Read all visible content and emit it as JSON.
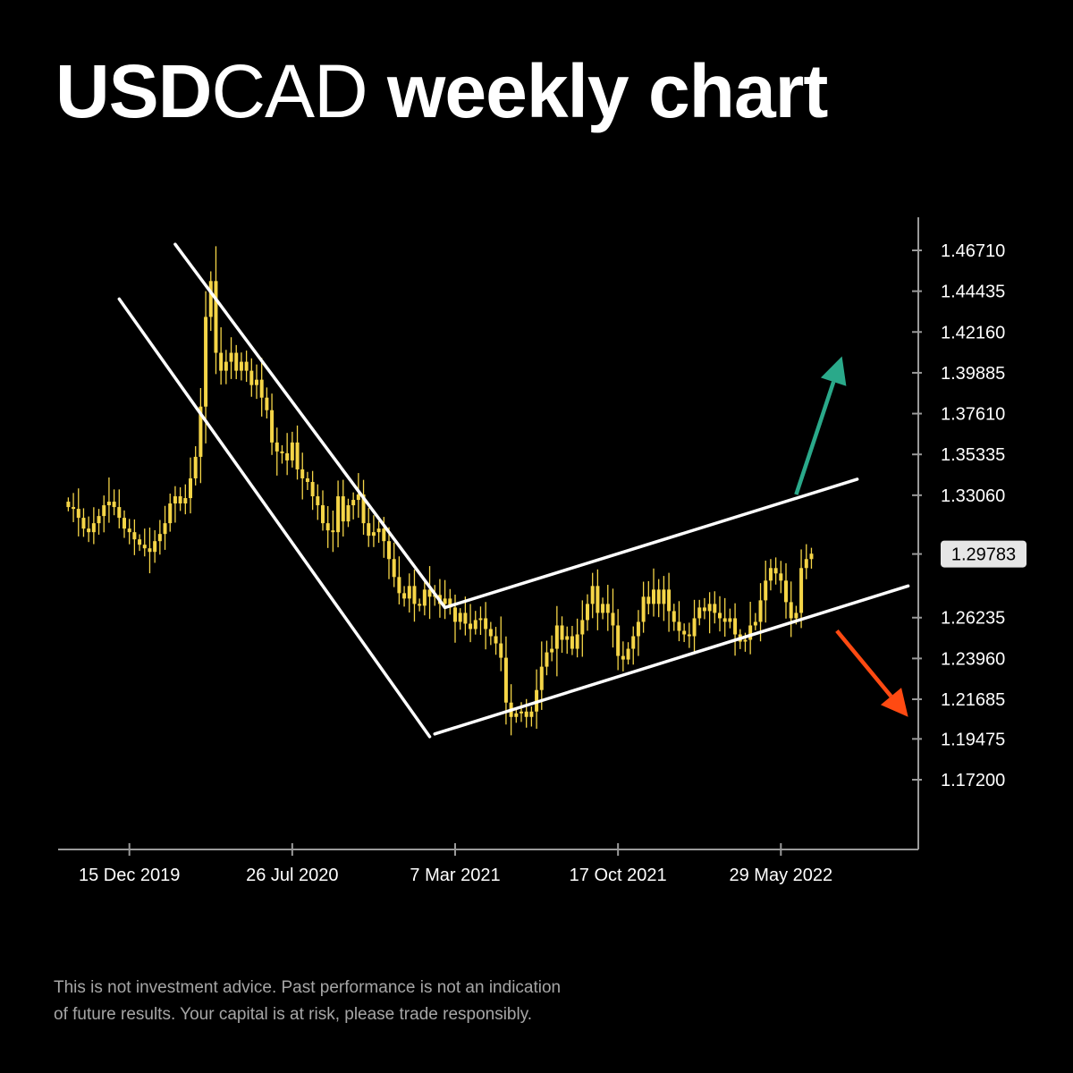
{
  "title": {
    "symbol_bold": "USD",
    "symbol_light": "CAD",
    "rest": " weekly chart"
  },
  "disclaimer": {
    "line1": "This is not investment advice. Past performance is not an indication",
    "line2": "of future results. Your capital is at risk, please trade responsibly."
  },
  "colors": {
    "background": "#000000",
    "candle": "#f5d547",
    "trendline": "#ffffff",
    "axis": "#9a9a9a",
    "up_arrow": "#2aa98a",
    "down_arrow": "#ff4a12",
    "price_tag_bg": "#e6e6e6",
    "price_tag_text": "#000000"
  },
  "chart_data": {
    "type": "candlestick",
    "title": "USDCAD weekly chart",
    "x_tick_labels": [
      "15 Dec 2019",
      "26 Jul 2020",
      "7 Mar 2021",
      "17 Oct 2021",
      "29 May 2022"
    ],
    "y_tick_labels": [
      "1.46710",
      "1.44435",
      "1.42160",
      "1.39885",
      "1.37610",
      "1.35335",
      "1.33060",
      "1.26235",
      "1.23960",
      "1.21685",
      "1.19475",
      "1.17200"
    ],
    "ylim": [
      1.135,
      1.485
    ],
    "xlim": [
      "2019-09-08",
      "2022-12-04"
    ],
    "last_price_label": "1.29783",
    "last_price": 1.29783,
    "close_series": {
      "start_date": "2019-09-22",
      "interval": "weekly",
      "values": [
        1.324,
        1.323,
        1.318,
        1.312,
        1.31,
        1.315,
        1.319,
        1.325,
        1.327,
        1.324,
        1.318,
        1.312,
        1.31,
        1.306,
        1.303,
        1.301,
        1.299,
        1.305,
        1.309,
        1.315,
        1.326,
        1.33,
        1.326,
        1.329,
        1.34,
        1.352,
        1.38,
        1.43,
        1.45,
        1.41,
        1.4,
        1.405,
        1.41,
        1.4,
        1.405,
        1.4,
        1.392,
        1.395,
        1.385,
        1.378,
        1.36,
        1.355,
        1.354,
        1.35,
        1.36,
        1.345,
        1.34,
        1.338,
        1.33,
        1.325,
        1.315,
        1.311,
        1.31,
        1.33,
        1.316,
        1.325,
        1.328,
        1.331,
        1.315,
        1.308,
        1.31,
        1.312,
        1.305,
        1.295,
        1.285,
        1.276,
        1.273,
        1.28,
        1.27,
        1.269,
        1.278,
        1.274,
        1.275,
        1.27,
        1.273,
        1.268,
        1.26,
        1.265,
        1.259,
        1.256,
        1.261,
        1.262,
        1.256,
        1.252,
        1.248,
        1.24,
        1.215,
        1.207,
        1.209,
        1.21,
        1.207,
        1.21,
        1.222,
        1.235,
        1.243,
        1.245,
        1.258,
        1.25,
        1.252,
        1.245,
        1.253,
        1.261,
        1.27,
        1.28,
        1.265,
        1.27,
        1.265,
        1.258,
        1.241,
        1.239,
        1.245,
        1.252,
        1.26,
        1.274,
        1.27,
        1.278,
        1.27,
        1.278,
        1.266,
        1.26,
        1.255,
        1.253,
        1.252,
        1.262,
        1.268,
        1.266,
        1.27,
        1.265,
        1.262,
        1.26,
        1.262,
        1.253,
        1.249,
        1.25,
        1.258,
        1.26,
        1.272,
        1.283,
        1.29,
        1.287,
        1.283,
        1.271,
        1.262,
        1.265,
        1.29,
        1.295,
        1.298
      ]
    }
  }
}
